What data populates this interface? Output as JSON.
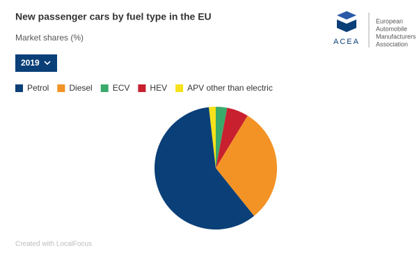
{
  "chart_data": {
    "type": "pie",
    "title": "New passenger cars by fuel type in the EU",
    "subtitle": "Market shares (%)",
    "selector": "2019",
    "categories": [
      "Petrol",
      "Diesel",
      "ECV",
      "HEV",
      "APV other than electric"
    ],
    "values": [
      58.9,
      30.5,
      3.0,
      5.7,
      1.8
    ],
    "colors": [
      "#0a3f78",
      "#f39325",
      "#3aaa6b",
      "#c8202f",
      "#f6e11a"
    ],
    "footer": "Created with LocalFocus"
  },
  "logo": {
    "acronym": "ACEA",
    "lines": [
      "European",
      "Automobile",
      "Manufacturers",
      "Association"
    ]
  }
}
